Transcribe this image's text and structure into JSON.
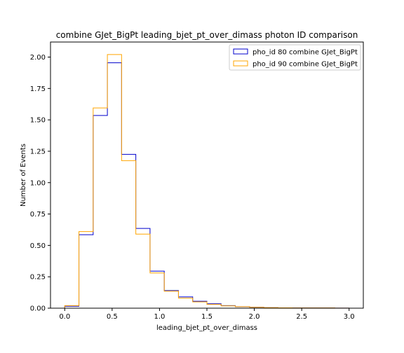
{
  "chart_data": {
    "type": "histogram",
    "title": "combine GJet_BigPt leading_bjet_pt_over_dimass photon ID comparison",
    "xlabel": "leading_bjet_pt_over_dimass",
    "ylabel": "Number of Events",
    "xlim": [
      -0.15,
      3.15
    ],
    "ylim": [
      0,
      2.12
    ],
    "xticks": [
      "0.0",
      "0.5",
      "1.0",
      "1.5",
      "2.0",
      "2.5",
      "3.0"
    ],
    "yticks": [
      "0.00",
      "0.25",
      "0.50",
      "0.75",
      "1.00",
      "1.25",
      "1.50",
      "1.75",
      "2.00"
    ],
    "bin_edges": [
      0.0,
      0.15,
      0.3,
      0.45,
      0.6,
      0.75,
      0.9,
      1.05,
      1.2,
      1.35,
      1.5,
      1.65,
      1.8,
      1.95,
      2.1,
      2.25,
      2.4,
      2.55,
      2.7,
      2.85,
      3.0
    ],
    "series": [
      {
        "name": "pho_id 80 combine GJet_BigPt",
        "color": "#0000cc",
        "values": [
          0.015,
          0.585,
          1.535,
          1.955,
          1.225,
          0.635,
          0.295,
          0.14,
          0.09,
          0.055,
          0.035,
          0.02,
          0.012,
          0.008,
          0.004,
          0.003,
          0.002,
          0.002,
          0.002,
          0.001
        ]
      },
      {
        "name": "pho_id 90 combine GJet_BigPt",
        "color": "#ffa500",
        "values": [
          0.02,
          0.61,
          1.595,
          2.02,
          1.175,
          0.59,
          0.28,
          0.135,
          0.08,
          0.05,
          0.03,
          0.018,
          0.012,
          0.007,
          0.004,
          0.003,
          0.002,
          0.002,
          0.002,
          0.001
        ]
      }
    ],
    "legend_position": "top-right"
  }
}
